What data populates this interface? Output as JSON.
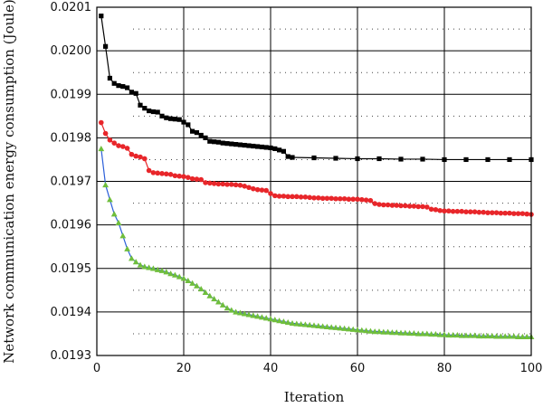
{
  "chart_data": {
    "type": "line",
    "title": "",
    "xlabel": "Iteration",
    "ylabel": "Network communication energy consumption (Joule)",
    "xlim": [
      0,
      100
    ],
    "ylim": [
      0.0193,
      0.0201
    ],
    "x_ticks": [
      0,
      20,
      40,
      60,
      80,
      100
    ],
    "x_tick_labels": [
      "0",
      "20",
      "40",
      "60",
      "80",
      "100"
    ],
    "y_ticks": [
      0.0193,
      0.0194,
      0.0195,
      0.0196,
      0.0197,
      0.0198,
      0.0199,
      0.02,
      0.0201
    ],
    "y_tick_labels": [
      "0.0193",
      "0.0194",
      "0.0195",
      "0.0196",
      "0.0197",
      "0.0198",
      "0.0199",
      "0.0200",
      "0.0201"
    ],
    "grid": true,
    "minor_grid_y": true,
    "legend": "none",
    "series": [
      {
        "color": "#000000",
        "line_color": "#000000",
        "marker": "square",
        "points": [
          [
            1,
            0.02008
          ],
          [
            2,
            0.02001
          ],
          [
            3,
            0.019937
          ],
          [
            4,
            0.019925
          ],
          [
            5,
            0.01992
          ],
          [
            6,
            0.019918
          ],
          [
            7,
            0.019915
          ],
          [
            8,
            0.019905
          ],
          [
            9,
            0.019902
          ],
          [
            10,
            0.019875
          ],
          [
            11,
            0.019868
          ],
          [
            12,
            0.019862
          ],
          [
            13,
            0.01986
          ],
          [
            14,
            0.019859
          ],
          [
            15,
            0.01985
          ],
          [
            16,
            0.019846
          ],
          [
            17,
            0.019844
          ],
          [
            18,
            0.019843
          ],
          [
            19,
            0.019842
          ],
          [
            20,
            0.019836
          ],
          [
            21,
            0.01983
          ],
          [
            22,
            0.019815
          ],
          [
            23,
            0.019812
          ],
          [
            24,
            0.019806
          ],
          [
            25,
            0.0198
          ],
          [
            26,
            0.019792
          ],
          [
            27,
            0.019791
          ],
          [
            28,
            0.01979
          ],
          [
            29,
            0.019788
          ],
          [
            30,
            0.019787
          ],
          [
            31,
            0.019786
          ],
          [
            32,
            0.019785
          ],
          [
            33,
            0.019784
          ],
          [
            34,
            0.019783
          ],
          [
            35,
            0.019782
          ],
          [
            36,
            0.019781
          ],
          [
            37,
            0.01978
          ],
          [
            38,
            0.019779
          ],
          [
            39,
            0.019778
          ],
          [
            40,
            0.019777
          ],
          [
            41,
            0.019775
          ],
          [
            42,
            0.019772
          ],
          [
            43,
            0.019769
          ],
          [
            44,
            0.019757
          ],
          [
            45,
            0.019755
          ],
          [
            50,
            0.019754
          ],
          [
            55,
            0.019753
          ],
          [
            60,
            0.019752
          ],
          [
            65,
            0.019752
          ],
          [
            70,
            0.019751
          ],
          [
            75,
            0.019751
          ],
          [
            80,
            0.01975
          ],
          [
            85,
            0.01975
          ],
          [
            90,
            0.01975
          ],
          [
            95,
            0.01975
          ],
          [
            100,
            0.01975
          ]
        ]
      },
      {
        "color": "#e8262a",
        "line_color": "#e8262a",
        "marker": "circle",
        "points": [
          [
            1,
            0.019835
          ],
          [
            2,
            0.01981
          ],
          [
            3,
            0.019795
          ],
          [
            4,
            0.019788
          ],
          [
            5,
            0.019782
          ],
          [
            6,
            0.01978
          ],
          [
            7,
            0.019776
          ],
          [
            8,
            0.019762
          ],
          [
            9,
            0.019758
          ],
          [
            10,
            0.019756
          ],
          [
            11,
            0.019752
          ],
          [
            12,
            0.019725
          ],
          [
            13,
            0.01972
          ],
          [
            14,
            0.019719
          ],
          [
            15,
            0.019718
          ],
          [
            16,
            0.019717
          ],
          [
            17,
            0.019716
          ],
          [
            18,
            0.019713
          ],
          [
            19,
            0.019712
          ],
          [
            20,
            0.019711
          ],
          [
            21,
            0.019709
          ],
          [
            22,
            0.019706
          ],
          [
            23,
            0.019705
          ],
          [
            24,
            0.019704
          ],
          [
            25,
            0.019697
          ],
          [
            26,
            0.019696
          ],
          [
            27,
            0.019695
          ],
          [
            28,
            0.019694
          ],
          [
            29,
            0.019694
          ],
          [
            30,
            0.019693
          ],
          [
            31,
            0.019693
          ],
          [
            32,
            0.019692
          ],
          [
            33,
            0.019691
          ],
          [
            34,
            0.019689
          ],
          [
            35,
            0.019686
          ],
          [
            36,
            0.019683
          ],
          [
            37,
            0.019681
          ],
          [
            38,
            0.01968
          ],
          [
            39,
            0.019679
          ],
          [
            40,
            0.019672
          ],
          [
            41,
            0.019667
          ],
          [
            42,
            0.019666
          ],
          [
            43,
            0.019666
          ],
          [
            44,
            0.019665
          ],
          [
            45,
            0.019665
          ],
          [
            46,
            0.019665
          ],
          [
            47,
            0.019664
          ],
          [
            48,
            0.019664
          ],
          [
            49,
            0.019663
          ],
          [
            50,
            0.019662
          ],
          [
            51,
            0.019662
          ],
          [
            52,
            0.019661
          ],
          [
            53,
            0.019661
          ],
          [
            54,
            0.019661
          ],
          [
            55,
            0.01966
          ],
          [
            56,
            0.01966
          ],
          [
            57,
            0.01966
          ],
          [
            58,
            0.019659
          ],
          [
            59,
            0.019659
          ],
          [
            60,
            0.019659
          ],
          [
            61,
            0.019658
          ],
          [
            62,
            0.019657
          ],
          [
            63,
            0.019656
          ],
          [
            64,
            0.019649
          ],
          [
            65,
            0.019647
          ],
          [
            66,
            0.019646
          ],
          [
            67,
            0.019646
          ],
          [
            68,
            0.019645
          ],
          [
            69,
            0.019645
          ],
          [
            70,
            0.019644
          ],
          [
            71,
            0.019644
          ],
          [
            72,
            0.019643
          ],
          [
            73,
            0.019643
          ],
          [
            74,
            0.019642
          ],
          [
            75,
            0.019642
          ],
          [
            76,
            0.019641
          ],
          [
            77,
            0.019636
          ],
          [
            78,
            0.019635
          ],
          [
            79,
            0.019633
          ],
          [
            80,
            0.019632
          ],
          [
            81,
            0.019632
          ],
          [
            82,
            0.019631
          ],
          [
            83,
            0.019631
          ],
          [
            84,
            0.019631
          ],
          [
            85,
            0.01963
          ],
          [
            86,
            0.01963
          ],
          [
            87,
            0.01963
          ],
          [
            88,
            0.019629
          ],
          [
            89,
            0.019629
          ],
          [
            90,
            0.019628
          ],
          [
            91,
            0.019628
          ],
          [
            92,
            0.019628
          ],
          [
            93,
            0.019627
          ],
          [
            94,
            0.019627
          ],
          [
            95,
            0.019627
          ],
          [
            96,
            0.019626
          ],
          [
            97,
            0.019626
          ],
          [
            98,
            0.019626
          ],
          [
            99,
            0.019625
          ],
          [
            100,
            0.019624
          ]
        ]
      },
      {
        "color": "#6fbe3c",
        "line_color": "#2b5fd9",
        "marker": "triangle",
        "points": [
          [
            1,
            0.019775
          ],
          [
            2,
            0.019692
          ],
          [
            3,
            0.019658
          ],
          [
            4,
            0.019625
          ],
          [
            5,
            0.019605
          ],
          [
            6,
            0.019575
          ],
          [
            7,
            0.019545
          ],
          [
            8,
            0.019523
          ],
          [
            9,
            0.019515
          ],
          [
            10,
            0.019508
          ],
          [
            11,
            0.019504
          ],
          [
            12,
            0.019502
          ],
          [
            13,
            0.0195
          ],
          [
            14,
            0.019497
          ],
          [
            15,
            0.019495
          ],
          [
            16,
            0.019492
          ],
          [
            17,
            0.019488
          ],
          [
            18,
            0.019485
          ],
          [
            19,
            0.019481
          ],
          [
            20,
            0.019477
          ],
          [
            21,
            0.019472
          ],
          [
            22,
            0.019466
          ],
          [
            23,
            0.01946
          ],
          [
            24,
            0.019453
          ],
          [
            25,
            0.019445
          ],
          [
            26,
            0.019437
          ],
          [
            27,
            0.01943
          ],
          [
            28,
            0.019423
          ],
          [
            29,
            0.019416
          ],
          [
            30,
            0.019409
          ],
          [
            31,
            0.019404
          ],
          [
            32,
            0.0194
          ],
          [
            33,
            0.019398
          ],
          [
            34,
            0.019396
          ],
          [
            35,
            0.019394
          ],
          [
            36,
            0.019392
          ],
          [
            37,
            0.01939
          ],
          [
            38,
            0.019388
          ],
          [
            39,
            0.019386
          ],
          [
            40,
            0.019384
          ],
          [
            41,
            0.019382
          ],
          [
            42,
            0.01938
          ],
          [
            43,
            0.019378
          ],
          [
            44,
            0.019376
          ],
          [
            45,
            0.019374
          ],
          [
            46,
            0.019373
          ],
          [
            47,
            0.019372
          ],
          [
            48,
            0.019371
          ],
          [
            49,
            0.01937
          ],
          [
            50,
            0.019369
          ],
          [
            51,
            0.019368
          ],
          [
            52,
            0.019367
          ],
          [
            53,
            0.019366
          ],
          [
            54,
            0.019365
          ],
          [
            55,
            0.019364
          ],
          [
            56,
            0.019363
          ],
          [
            57,
            0.019362
          ],
          [
            58,
            0.019361
          ],
          [
            59,
            0.01936
          ],
          [
            60,
            0.019359
          ],
          [
            61,
            0.019358
          ],
          [
            62,
            0.019357
          ],
          [
            63,
            0.019356
          ],
          [
            64,
            0.019355
          ],
          [
            65,
            0.019355
          ],
          [
            66,
            0.019354
          ],
          [
            67,
            0.019354
          ],
          [
            68,
            0.019353
          ],
          [
            69,
            0.019353
          ],
          [
            70,
            0.019352
          ],
          [
            71,
            0.019352
          ],
          [
            72,
            0.019351
          ],
          [
            73,
            0.019351
          ],
          [
            74,
            0.01935
          ],
          [
            75,
            0.01935
          ],
          [
            76,
            0.01935
          ],
          [
            77,
            0.019349
          ],
          [
            78,
            0.019349
          ],
          [
            79,
            0.019348
          ],
          [
            80,
            0.019348
          ],
          [
            81,
            0.019347
          ],
          [
            82,
            0.019347
          ],
          [
            83,
            0.019347
          ],
          [
            84,
            0.019346
          ],
          [
            85,
            0.019346
          ],
          [
            86,
            0.019346
          ],
          [
            87,
            0.019346
          ],
          [
            88,
            0.019345
          ],
          [
            89,
            0.019345
          ],
          [
            90,
            0.019345
          ],
          [
            91,
            0.019345
          ],
          [
            92,
            0.019344
          ],
          [
            93,
            0.019344
          ],
          [
            94,
            0.019344
          ],
          [
            95,
            0.019344
          ],
          [
            96,
            0.019344
          ],
          [
            97,
            0.019343
          ],
          [
            98,
            0.019343
          ],
          [
            99,
            0.019343
          ],
          [
            100,
            0.019343
          ]
        ]
      }
    ]
  }
}
